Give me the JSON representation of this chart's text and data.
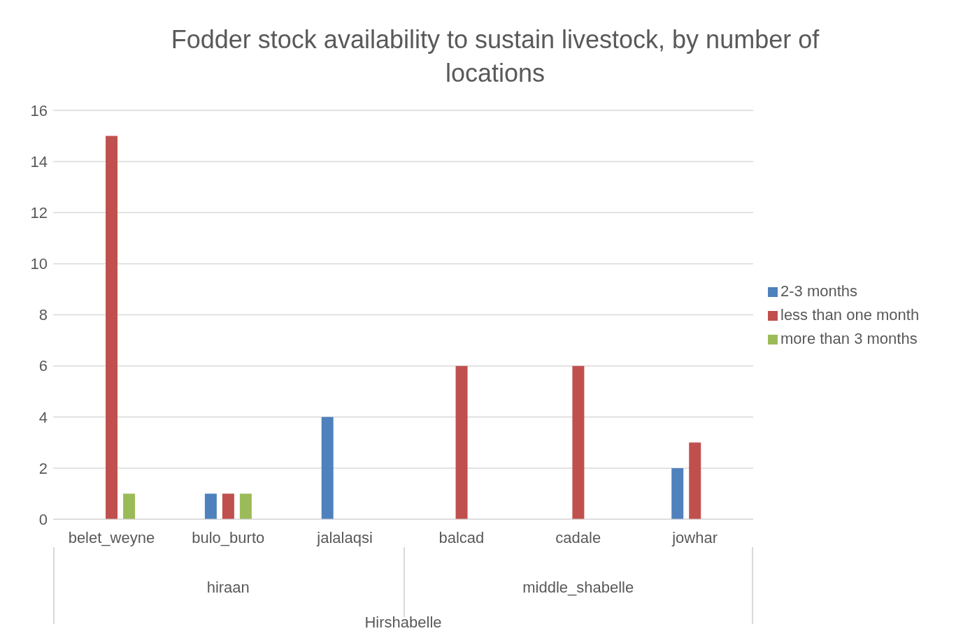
{
  "chart_data": {
    "type": "bar",
    "title": "Fodder stock availability to sustain livestock, by number of locations",
    "categories": [
      "belet_weyne",
      "bulo_burto",
      "jalalaqsi",
      "balcad",
      "cadale",
      "jowhar"
    ],
    "series": [
      {
        "name": "2-3 months",
        "color": "#4f81bd",
        "values": [
          null,
          1,
          4,
          null,
          null,
          2
        ]
      },
      {
        "name": "less than one month",
        "color": "#c0504d",
        "values": [
          15,
          1,
          null,
          6,
          6,
          3
        ]
      },
      {
        "name": "more than 3 months",
        "color": "#9bbb59",
        "values": [
          1,
          1,
          null,
          null,
          null,
          null
        ]
      }
    ],
    "annotations": [
      "hiraan",
      "middle_shabelle",
      "Hirshabelle"
    ],
    "ylim": [
      0,
      16
    ],
    "yticks": [
      0,
      2,
      4,
      6,
      8,
      10,
      12,
      14,
      16
    ],
    "grid": "y",
    "legend": "right"
  }
}
